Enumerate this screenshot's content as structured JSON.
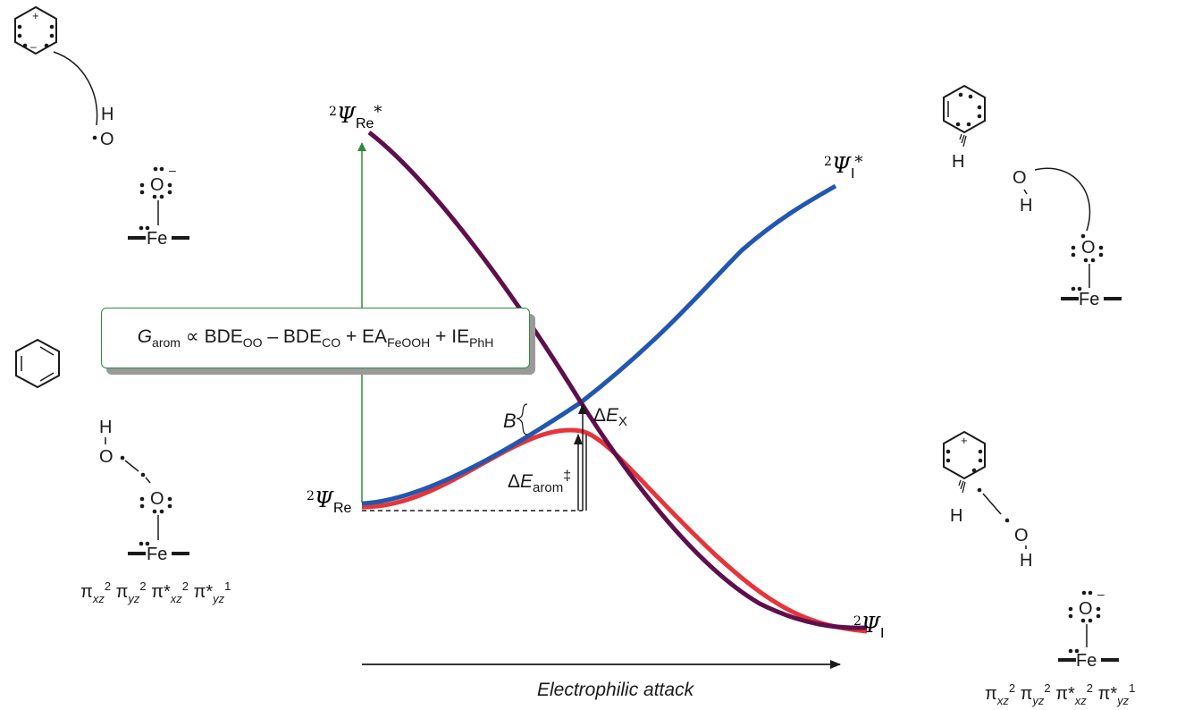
{
  "labels": {
    "psi_re_star": "Re",
    "psi_i_star": "I",
    "psi_re": "Re",
    "psi_i": "I",
    "delta_ex_sub": "X",
    "delta_e_arom_sub": "arom",
    "barrier_b": "B",
    "x_axis": "Electrophilic attack"
  },
  "equation": {
    "g": "G",
    "g_sub": "arom",
    "t1": " ∝ BDE",
    "s1": "OO",
    "t2": " – BDE",
    "s2": "CO",
    "t3": " + EA",
    "s3": "FeOOH",
    "t4": " + IE",
    "s4": "PhH"
  },
  "config_left": "π",
  "config_right": "π",
  "colors": {
    "purple": "#5e0f4c",
    "blue": "#2257b0",
    "red": "#e5353a",
    "green": "#2e8b3e"
  }
}
